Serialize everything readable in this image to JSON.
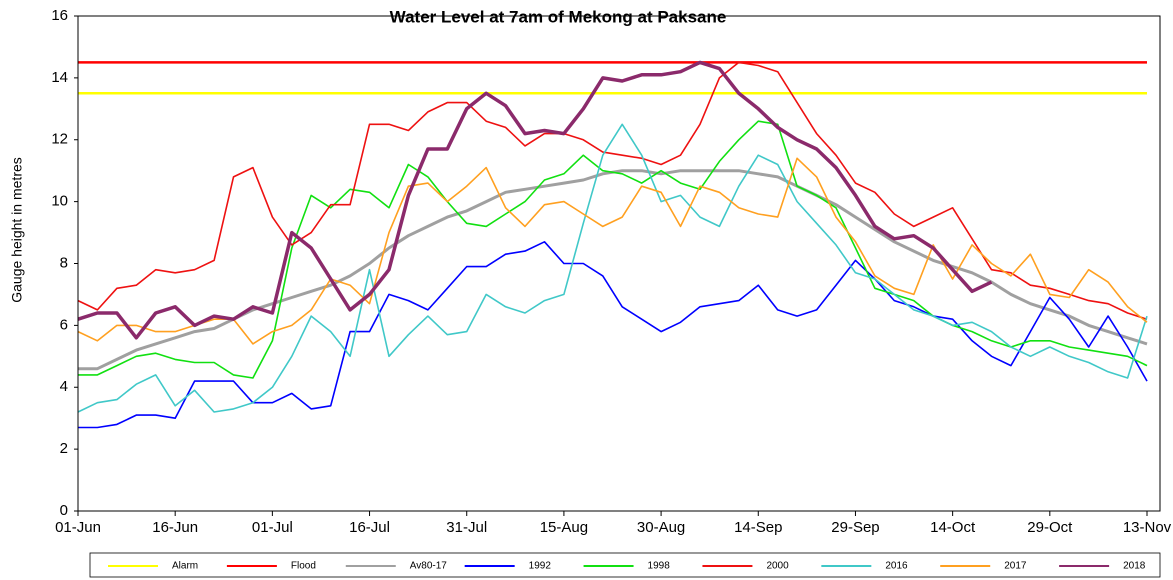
{
  "chart_data": {
    "type": "line",
    "title": "Water Level at 7am  of Mekong at Paksane",
    "y_label": "Gauge height in metres",
    "categories": [
      "01-Jun",
      null,
      null,
      null,
      null,
      "16-Jun",
      null,
      null,
      null,
      null,
      "01-Jul",
      null,
      null,
      null,
      null,
      "16-Jul",
      null,
      null,
      null,
      null,
      "31-Jul",
      null,
      null,
      null,
      null,
      "15-Aug",
      null,
      null,
      null,
      null,
      "30-Aug",
      null,
      null,
      null,
      null,
      "14-Sep",
      null,
      null,
      null,
      null,
      "29-Sep",
      null,
      null,
      null,
      null,
      "14-Oct",
      null,
      null,
      null,
      null,
      "29-Oct",
      null,
      null,
      null,
      null,
      "13-Nov"
    ],
    "ylim": [
      0,
      16
    ],
    "yticks": [
      0,
      2,
      4,
      6,
      8,
      10,
      12,
      14,
      16
    ],
    "grid": false,
    "legend": "bottom",
    "series": [
      {
        "name": "Alarm",
        "color": "#ffff00",
        "values": [
          13.5,
          13.5,
          13.5,
          13.5,
          13.5,
          13.5,
          13.5,
          13.5,
          13.5,
          13.5,
          13.5,
          13.5,
          13.5,
          13.5,
          13.5,
          13.5,
          13.5,
          13.5,
          13.5,
          13.5,
          13.5,
          13.5,
          13.5,
          13.5,
          13.5,
          13.5,
          13.5,
          13.5,
          13.5,
          13.5,
          13.5,
          13.5,
          13.5,
          13.5,
          13.5,
          13.5,
          13.5,
          13.5,
          13.5,
          13.5,
          13.5,
          13.5,
          13.5,
          13.5,
          13.5,
          13.5,
          13.5,
          13.5,
          13.5,
          13.5,
          13.5,
          13.5,
          13.5,
          13.5,
          13.5,
          13.5
        ]
      },
      {
        "name": "Flood",
        "color": "#ff0000",
        "values": [
          14.5,
          14.5,
          14.5,
          14.5,
          14.5,
          14.5,
          14.5,
          14.5,
          14.5,
          14.5,
          14.5,
          14.5,
          14.5,
          14.5,
          14.5,
          14.5,
          14.5,
          14.5,
          14.5,
          14.5,
          14.5,
          14.5,
          14.5,
          14.5,
          14.5,
          14.5,
          14.5,
          14.5,
          14.5,
          14.5,
          14.5,
          14.5,
          14.5,
          14.5,
          14.5,
          14.5,
          14.5,
          14.5,
          14.5,
          14.5,
          14.5,
          14.5,
          14.5,
          14.5,
          14.5,
          14.5,
          14.5,
          14.5,
          14.5,
          14.5,
          14.5,
          14.5,
          14.5,
          14.5,
          14.5,
          14.5
        ]
      },
      {
        "name": "Av80-17",
        "color": "#a0a0a0",
        "values": [
          4.6,
          4.6,
          4.9,
          5.2,
          5.4,
          5.6,
          5.8,
          5.9,
          6.2,
          6.5,
          6.7,
          6.9,
          7.1,
          7.3,
          7.6,
          8.0,
          8.5,
          8.9,
          9.2,
          9.5,
          9.7,
          10.0,
          10.3,
          10.4,
          10.5,
          10.6,
          10.7,
          10.9,
          11.0,
          11.0,
          10.9,
          11.0,
          11.0,
          11.0,
          11.0,
          10.9,
          10.8,
          10.5,
          10.2,
          9.9,
          9.5,
          9.1,
          8.7,
          8.4,
          8.1,
          7.9,
          7.7,
          7.4,
          7.0,
          6.7,
          6.5,
          6.3,
          6.0,
          5.8,
          5.6,
          5.4
        ]
      },
      {
        "name": "1992",
        "color": "#0000ff",
        "values": [
          2.7,
          2.7,
          2.8,
          3.1,
          3.1,
          3.0,
          4.2,
          4.2,
          4.2,
          3.5,
          3.5,
          3.8,
          3.3,
          3.4,
          5.8,
          5.8,
          7.0,
          6.8,
          6.5,
          7.2,
          7.9,
          7.9,
          8.3,
          8.4,
          8.7,
          8.0,
          8.0,
          7.6,
          6.6,
          6.2,
          5.8,
          6.1,
          6.6,
          6.7,
          6.8,
          7.3,
          6.5,
          6.3,
          6.5,
          7.3,
          8.1,
          7.5,
          6.8,
          6.6,
          6.3,
          6.2,
          5.5,
          5.0,
          4.7,
          5.8,
          6.9,
          6.2,
          5.3,
          6.3,
          5.3,
          4.2
        ]
      },
      {
        "name": "1998",
        "color": "#11e011",
        "values": [
          4.4,
          4.4,
          4.7,
          5.0,
          5.1,
          4.9,
          4.8,
          4.8,
          4.4,
          4.3,
          5.5,
          8.5,
          10.2,
          9.8,
          10.4,
          10.3,
          9.8,
          11.2,
          10.8,
          10.0,
          9.3,
          9.2,
          9.6,
          10.0,
          10.7,
          10.9,
          11.5,
          11.0,
          10.9,
          10.6,
          11.0,
          10.6,
          10.4,
          11.3,
          12.0,
          12.6,
          12.5,
          10.5,
          10.2,
          9.8,
          8.5,
          7.2,
          7.0,
          6.8,
          6.3,
          6.0,
          5.8,
          5.5,
          5.3,
          5.5,
          5.5,
          5.3,
          5.2,
          5.1,
          5.0,
          4.7
        ]
      },
      {
        "name": "2000",
        "color": "#ee1111",
        "values": [
          6.8,
          6.5,
          7.2,
          7.3,
          7.8,
          7.7,
          7.8,
          8.1,
          10.8,
          11.1,
          9.5,
          8.6,
          9.0,
          9.9,
          9.9,
          12.5,
          12.5,
          12.3,
          12.9,
          13.2,
          13.2,
          12.6,
          12.4,
          11.8,
          12.2,
          12.2,
          12.0,
          11.6,
          11.5,
          11.4,
          11.2,
          11.5,
          12.5,
          14.0,
          14.5,
          14.4,
          14.2,
          13.2,
          12.2,
          11.5,
          10.6,
          10.3,
          9.6,
          9.2,
          9.5,
          9.8,
          8.8,
          7.8,
          7.7,
          7.3,
          7.2,
          7.0,
          6.8,
          6.7,
          6.4,
          6.2
        ]
      },
      {
        "name": "2016",
        "color": "#40c8c8",
        "values": [
          3.2,
          3.5,
          3.6,
          4.1,
          4.4,
          3.4,
          3.9,
          3.2,
          3.3,
          3.5,
          4.0,
          5.0,
          6.3,
          5.8,
          5.0,
          7.8,
          5.0,
          5.7,
          6.3,
          5.7,
          5.8,
          7.0,
          6.6,
          6.4,
          6.8,
          7.0,
          9.3,
          11.5,
          12.5,
          11.5,
          10.0,
          10.2,
          9.5,
          9.2,
          10.5,
          11.5,
          11.2,
          10.0,
          9.3,
          8.6,
          7.7,
          7.5,
          7.0,
          6.5,
          6.3,
          6.0,
          6.1,
          5.8,
          5.3,
          5.0,
          5.3,
          5.0,
          4.8,
          4.5,
          4.3,
          6.3
        ]
      },
      {
        "name": "2017",
        "color": "#ffa020",
        "values": [
          5.8,
          5.5,
          6.0,
          6.0,
          5.8,
          5.8,
          6.0,
          6.2,
          6.2,
          5.4,
          5.8,
          6.0,
          6.5,
          7.5,
          7.3,
          6.7,
          9.0,
          10.5,
          10.6,
          10.0,
          10.5,
          11.1,
          9.8,
          9.2,
          9.9,
          10.0,
          9.6,
          9.2,
          9.5,
          10.5,
          10.3,
          9.2,
          10.5,
          10.3,
          9.8,
          9.6,
          9.5,
          11.4,
          10.8,
          9.5,
          8.7,
          7.6,
          7.2,
          7.0,
          8.6,
          7.5,
          8.6,
          8.0,
          7.6,
          8.3,
          7.0,
          6.9,
          7.8,
          7.4,
          6.6,
          6.1
        ]
      },
      {
        "name": "2018",
        "color": "#8b2a6b",
        "values": [
          6.2,
          6.4,
          6.4,
          5.6,
          6.4,
          6.6,
          6.0,
          6.3,
          6.2,
          6.6,
          6.4,
          9.0,
          8.5,
          7.5,
          6.5,
          7.0,
          7.8,
          10.2,
          11.7,
          11.7,
          13.0,
          13.5,
          13.1,
          12.2,
          12.3,
          12.2,
          13.0,
          14.0,
          13.9,
          14.1,
          14.1,
          14.2,
          14.5,
          14.3,
          13.5,
          13.0,
          12.4,
          12.0,
          11.7,
          11.1,
          10.2,
          9.2,
          8.8,
          8.9,
          8.5,
          7.8,
          7.1,
          7.4,
          null,
          null,
          null,
          null,
          null,
          null,
          null,
          null
        ]
      }
    ]
  }
}
